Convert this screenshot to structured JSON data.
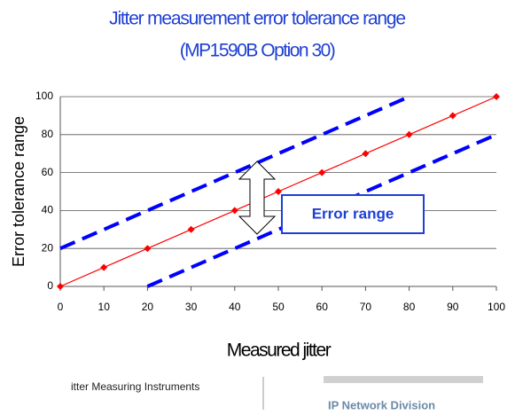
{
  "chart_data": {
    "type": "line",
    "title": "Jitter measurement error tolerance range",
    "subtitle": "(MP1590B Option 30)",
    "x_label": "Measured jitter",
    "y_label": "Error tolerance range",
    "annotation": "Error range",
    "xlim": [
      0,
      100
    ],
    "xticks": [
      0,
      10,
      20,
      30,
      40,
      50,
      60,
      70,
      80,
      90,
      100
    ],
    "ylim": [
      0,
      100
    ],
    "yticks": [
      0,
      20,
      40,
      60,
      80,
      100
    ],
    "grid": true,
    "series": [
      {
        "color": "#ff0000",
        "line_style": "solid",
        "marker": "diamond",
        "x": [
          0,
          10,
          20,
          30,
          40,
          50,
          60,
          70,
          80,
          90,
          100
        ],
        "values": [
          0,
          10,
          20,
          30,
          40,
          50,
          60,
          70,
          80,
          90,
          100
        ]
      },
      {
        "color": "#0000ff",
        "line_style": "dashed",
        "x": [
          0,
          80
        ],
        "values": [
          20,
          100
        ]
      },
      {
        "color": "#0000ff",
        "line_style": "dashed",
        "x": [
          20,
          100
        ],
        "values": [
          0,
          80
        ]
      }
    ]
  },
  "footer": {
    "left": "itter Measuring Instruments",
    "right": "IP Network Division"
  }
}
